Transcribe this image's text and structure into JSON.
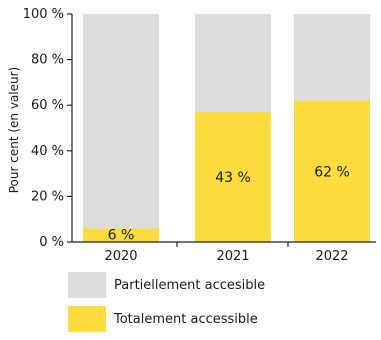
{
  "chart_data": {
    "type": "bar",
    "stacked": true,
    "categories": [
      "2020",
      "2021",
      "2022"
    ],
    "series": [
      {
        "name": "Totalement accessible",
        "values": [
          6,
          57,
          62
        ],
        "color": "#fddc3f"
      },
      {
        "name": "Partiellement accesible",
        "values": [
          94,
          43,
          38
        ],
        "color": "#dcdcdc"
      }
    ],
    "data_labels": [
      "6 %",
      "43 %",
      "62 %"
    ],
    "ylabel": "Pour cent (en valeur)",
    "yticks": [
      "0 %",
      "20 %",
      "40 %",
      "60 %",
      "80 %",
      "100 %"
    ],
    "ylim": [
      0,
      100
    ],
    "legend_position": "bottom",
    "legend_order": [
      "Partiellement accesible",
      "Totalement accessible"
    ]
  }
}
